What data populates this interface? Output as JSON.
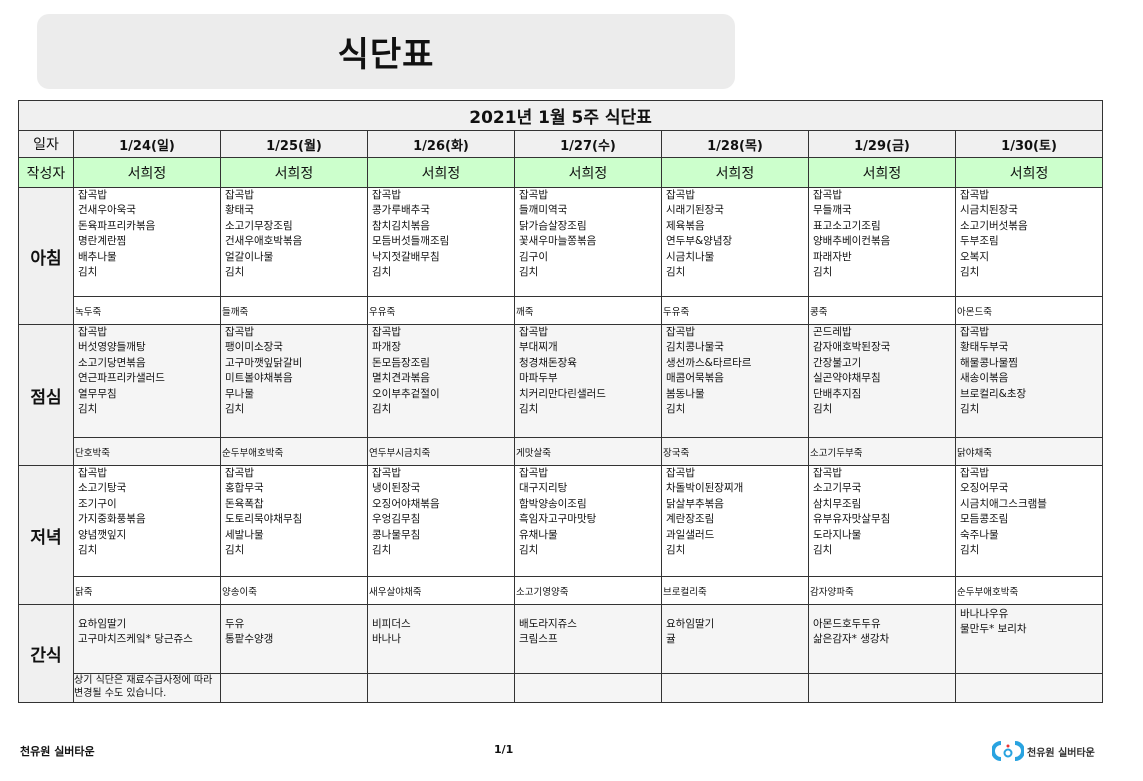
{
  "title": "식단표",
  "table": {
    "caption": "2021년 1월 5주 식단표",
    "date_label": "일자",
    "author_label": "작성자",
    "dates": [
      "1/24(일)",
      "1/25(월)",
      "1/26(화)",
      "1/27(수)",
      "1/28(목)",
      "1/29(금)",
      "1/30(토)"
    ],
    "authors": [
      "서희정",
      "서희정",
      "서희정",
      "서희정",
      "서희정",
      "서희정",
      "서희정"
    ],
    "meals": [
      {
        "label": "아침",
        "menus": [
          [
            "잡곡밥",
            "건새우아욱국",
            "돈육파프리카볶음",
            "명란계란찜",
            "배추나물",
            "김치"
          ],
          [
            "잡곡밥",
            "황태국",
            "소고기무장조림",
            "건새우애호박볶음",
            "얼갈이나물",
            "김치"
          ],
          [
            "잡곡밥",
            "콩가루배추국",
            "참치김치볶음",
            "모듬버섯들깨조림",
            "낙지젓갈배무침",
            "김치"
          ],
          [
            "잡곡밥",
            "들깨미역국",
            "닭가슴살장조림",
            "꽃새우마늘쫑볶음",
            "김구이",
            "김치"
          ],
          [
            "잡곡밥",
            "시래기된장국",
            "제육볶음",
            "연두부&양념장",
            "시금치나물",
            "김치"
          ],
          [
            "잡곡밥",
            "무들깨국",
            "표고소고기조림",
            "양배추베이컨볶음",
            "파래자반",
            "김치"
          ],
          [
            "잡곡밥",
            "시금치된장국",
            "소고기버섯볶음",
            "두부조림",
            "오복지",
            "김치"
          ]
        ],
        "porridge": [
          "녹두죽",
          "들깨죽",
          "우유죽",
          "깨죽",
          "두유죽",
          "콩죽",
          "아몬드죽"
        ]
      },
      {
        "label": "점심",
        "menus": [
          [
            "잡곡밥",
            "버섯영양들깨탕",
            "소고기당면볶음",
            "연근파프리카샐러드",
            "열무무침",
            "김치"
          ],
          [
            "잡곡밥",
            "팽이미소장국",
            "고구마깻잎닭갈비",
            "미트볼야채볶음",
            "무나물",
            "김치"
          ],
          [
            "잡곡밥",
            "파개장",
            "돈모듬장조림",
            "멸치견과볶음",
            "오이부추겉절이",
            "김치"
          ],
          [
            "잡곡밥",
            "부대찌개",
            "청경채돈장육",
            "마파두부",
            "치커리만다린샐러드",
            "김치"
          ],
          [
            "잡곡밥",
            "김치콩나물국",
            "생선까스&타르타르",
            "매콤어묵볶음",
            "봄동나물",
            "김치"
          ],
          [
            "곤드레밥",
            "감자애호박된장국",
            "간장불고기",
            "실곤약야채무침",
            "단배추지짐",
            "김치"
          ],
          [
            "잡곡밥",
            "황태두부국",
            "해물콩나물찜",
            "새송이볶음",
            "브로컬리&초장",
            "김치"
          ]
        ],
        "porridge": [
          "단호박죽",
          "순두부애호박죽",
          "연두부시금치죽",
          "게맛살죽",
          "장국죽",
          "소고기두부죽",
          "닭야채죽"
        ]
      },
      {
        "label": "저녁",
        "menus": [
          [
            "잡곡밥",
            "소고기탕국",
            "조기구이",
            "가지중화풍볶음",
            "양념깻잎지",
            "김치"
          ],
          [
            "잡곡밥",
            "홍합무국",
            "돈육폭찹",
            "도토리묵야채무침",
            "세발나물",
            "김치"
          ],
          [
            "잡곡밥",
            "냉이된장국",
            "오징어야채볶음",
            "우엉김무침",
            "콩나물무침",
            "김치"
          ],
          [
            "잡곡밥",
            "대구지리탕",
            "함박양송이조림",
            "흑임자고구마맛탕",
            "유채나물",
            "김치"
          ],
          [
            "잡곡밥",
            "차돌박이된장찌개",
            "닭살부추볶음",
            "계란장조림",
            "과일샐러드",
            "김치"
          ],
          [
            "잡곡밥",
            "소고기무국",
            "삼치무조림",
            "유부유자맛살무침",
            "도라지나물",
            "김치"
          ],
          [
            "잡곡밥",
            "오징어무국",
            "시금치애그스크램블",
            "모듬콩조림",
            "숙주나물",
            "김치"
          ]
        ],
        "porridge": [
          "닭죽",
          "양송이죽",
          "새우살야채죽",
          "소고기영양죽",
          "브로컬리죽",
          "감자양파죽",
          "순두부애호박죽"
        ]
      }
    ],
    "snack": {
      "label": "간식",
      "menus": [
        [
          "요하임딸기",
          "고구마치즈케잌* 당근쥬스"
        ],
        [
          "두유",
          "통팥수양갱"
        ],
        [
          "비피더스",
          "바나나"
        ],
        [
          "배도라지쥬스",
          "크림스프"
        ],
        [
          "요하임딸기",
          "귤"
        ],
        [
          "아몬드호두두유",
          "삶은감자* 생강차"
        ],
        [
          "바나나우유",
          "물만두* 보리차"
        ]
      ],
      "note": "상기 식단은 재료수급사정에 따라 변경될 수도 있습니다."
    }
  },
  "footer": {
    "org": "천유원 실버타운",
    "page": "1/1",
    "logo_text": "천유원 실버타운"
  },
  "colors": {
    "author_row": "#ccffcc",
    "header_bg": "#f0f0f0",
    "logo_blue": "#29a3e0"
  }
}
